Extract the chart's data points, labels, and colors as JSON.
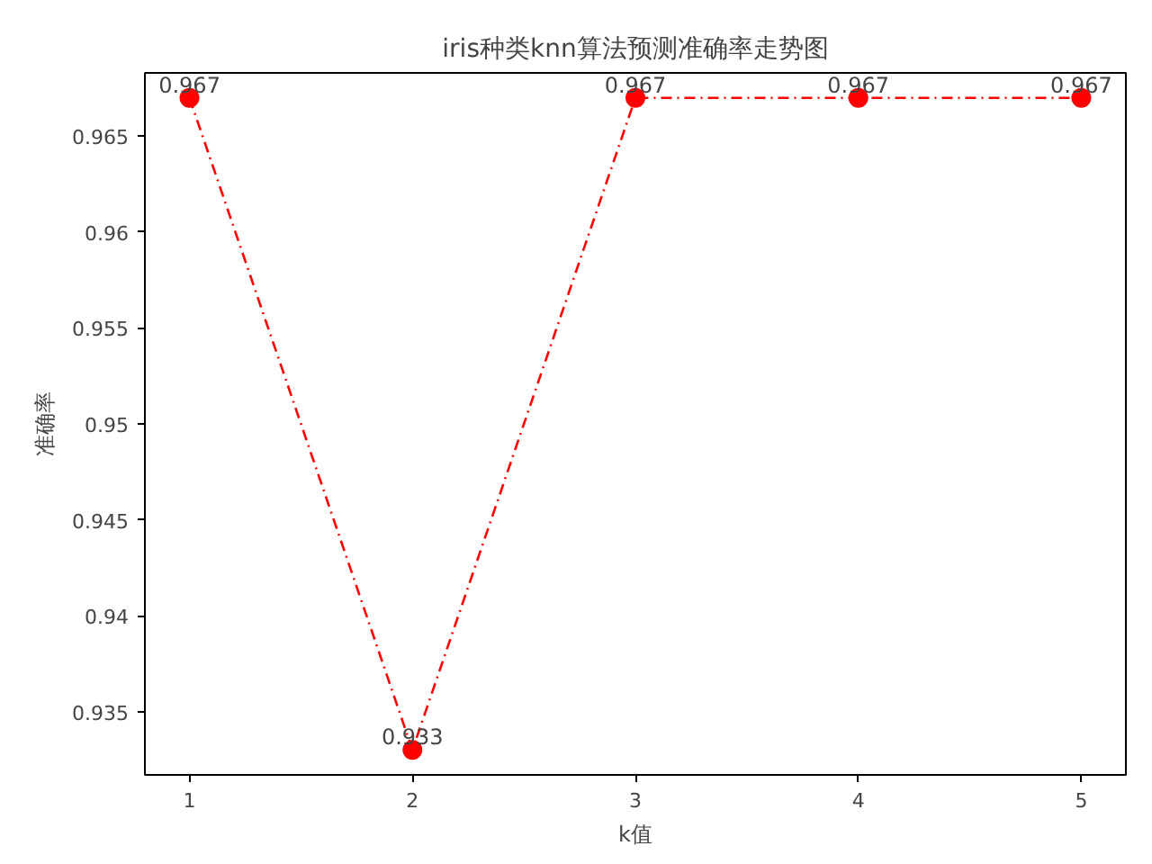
{
  "chart_data": {
    "type": "line",
    "title": "iris种类knn算法预测准确率走势图",
    "xlabel": "k值",
    "ylabel": "准确率",
    "x": [
      1,
      2,
      3,
      4,
      5
    ],
    "series": [
      {
        "color": "#ff0000",
        "values": [
          0.967,
          0.933,
          0.967,
          0.967,
          0.967
        ],
        "value_labels": [
          "0.967",
          "0.933",
          "0.967",
          "0.967",
          "0.967"
        ]
      }
    ],
    "xlim": [
      0.8,
      5.2
    ],
    "ylim": [
      0.9317,
      0.9683
    ],
    "xticks": [
      1,
      2,
      3,
      4,
      5
    ],
    "yticks": [
      0.935,
      0.94,
      0.945,
      0.95,
      0.955,
      0.96,
      0.965
    ],
    "grid": false,
    "marker": "circle",
    "line_style": "dashdot"
  }
}
